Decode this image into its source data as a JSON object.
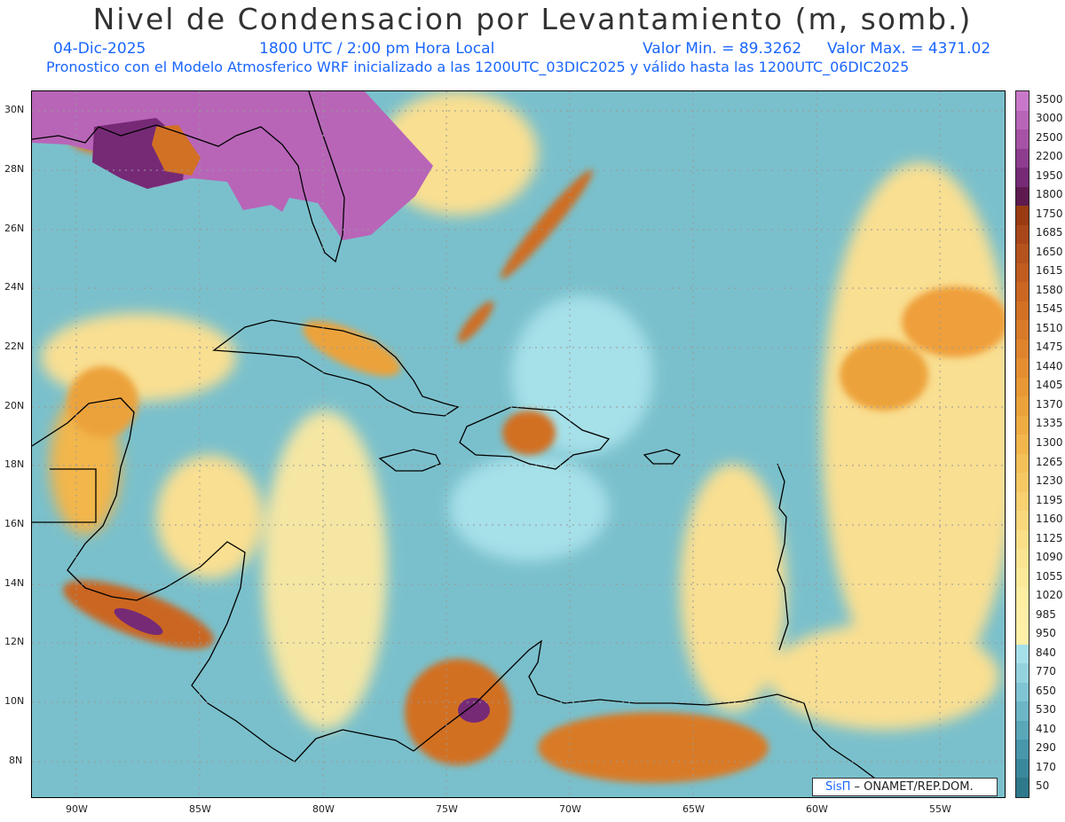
{
  "header": {
    "title": "Nivel de Condensacion por Levantamiento (m, somb.)",
    "date": "04-Dic-2025",
    "time": "1800 UTC / 2:00 pm Hora Local",
    "min": "Valor Min. = 89.3262",
    "max": "Valor Max. = 4371.02",
    "desc": "Pronostico con el Modelo Atmosferico WRF inicializado a las 1200UTC_03DIC2025 y válido hasta las  1200UTC_06DIC2025"
  },
  "axes": {
    "lat_labels": [
      "30N",
      "28N",
      "26N",
      "24N",
      "22N",
      "20N",
      "18N",
      "16N",
      "14N",
      "12N",
      "10N",
      "8N"
    ],
    "lon_labels": [
      "90W",
      "85W",
      "80W",
      "75W",
      "70W",
      "65W",
      "60W",
      "55W"
    ]
  },
  "colorbar": {
    "labels": [
      "3500",
      "3000",
      "2500",
      "2200",
      "1950",
      "1800",
      "1750",
      "1685",
      "1650",
      "1615",
      "1580",
      "1545",
      "1510",
      "1475",
      "1440",
      "1405",
      "1370",
      "1335",
      "1300",
      "1265",
      "1230",
      "1195",
      "1160",
      "1125",
      "1090",
      "1055",
      "1020",
      "985",
      "950",
      "840",
      "770",
      "650",
      "530",
      "410",
      "290",
      "170",
      "50"
    ],
    "colors": [
      "#c978c9",
      "#b865b8",
      "#a652a6",
      "#8e3c8e",
      "#762a76",
      "#5e1a4e",
      "#9a3a12",
      "#a8461a",
      "#b5521e",
      "#c05c20",
      "#ca6622",
      "#d27024",
      "#d97a28",
      "#df842c",
      "#e48e30",
      "#e89834",
      "#eca23a",
      "#efac42",
      "#f2b64c",
      "#f4c058",
      "#f6c864",
      "#f8d070",
      "#f9d87c",
      "#fadf88",
      "#fbe592",
      "#fcea9a",
      "#fdeea2",
      "#feeea6",
      "#fff0a8",
      "#a6e0e8",
      "#94d3de",
      "#80c5d3",
      "#6db6c7",
      "#5aa7ba",
      "#4897ab",
      "#3a889c",
      "#2f798c"
    ]
  },
  "credit": {
    "brand": "SisΠ",
    "rest": " – ONAMET/REP.DOM."
  },
  "colors": {
    "title": "#333333",
    "subtitle": "#1a66ff",
    "land": "#000000"
  }
}
